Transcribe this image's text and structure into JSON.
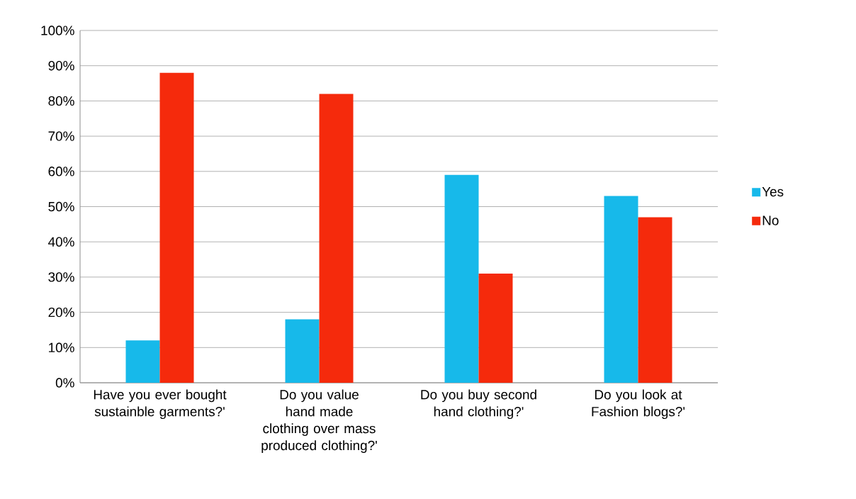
{
  "chart_data": {
    "type": "bar",
    "categories": [
      "Have you ever bought sustainble garments?'",
      "Do you value hand made clothing over mass produced clothing?'",
      "Do you buy second hand clothing?'",
      "Do you look at Fashion blogs?'"
    ],
    "series": [
      {
        "name": "Yes",
        "color": "#17b9ea",
        "values": [
          12,
          18,
          59,
          53
        ]
      },
      {
        "name": "No",
        "color": "#f52a0c",
        "values": [
          88,
          82,
          31,
          47
        ]
      }
    ],
    "ylim": [
      0,
      100
    ],
    "yticks": [
      {
        "value": 0,
        "label": "0%"
      },
      {
        "value": 10,
        "label": "10%"
      },
      {
        "value": 20,
        "label": "20%"
      },
      {
        "value": 30,
        "label": "30%"
      },
      {
        "value": 40,
        "label": "40%"
      },
      {
        "value": 50,
        "label": "50%"
      },
      {
        "value": 60,
        "label": "60%"
      },
      {
        "value": 70,
        "label": "70%"
      },
      {
        "value": 80,
        "label": "80%"
      },
      {
        "value": 90,
        "label": "90%"
      },
      {
        "value": 100,
        "label": "100%"
      }
    ],
    "grid": "y",
    "legend": "right"
  }
}
